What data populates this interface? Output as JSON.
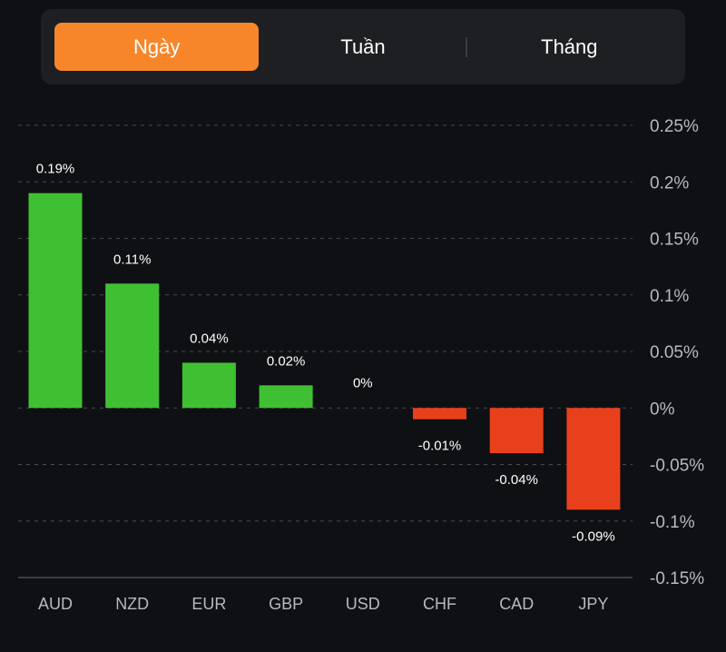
{
  "tabs": [
    {
      "label": "Ngày",
      "active": true
    },
    {
      "label": "Tuần",
      "active": false
    },
    {
      "label": "Tháng",
      "active": false
    }
  ],
  "colors": {
    "accent": "#f7862a",
    "positive": "#3fc033",
    "negative": "#e8401c",
    "background": "#0f1013",
    "panel": "#1e1f23",
    "grid": "#4a4b50",
    "axis_text": "#b8b9be"
  },
  "chart_data": {
    "type": "bar",
    "categories": [
      "AUD",
      "NZD",
      "EUR",
      "GBP",
      "USD",
      "CHF",
      "CAD",
      "JPY"
    ],
    "values": [
      0.19,
      0.11,
      0.04,
      0.02,
      0,
      -0.01,
      -0.04,
      -0.09
    ],
    "data_labels": [
      "0.19%",
      "0.11%",
      "0.04%",
      "0.02%",
      "0%",
      "-0.01%",
      "-0.04%",
      "-0.09%"
    ],
    "y_ticks": [
      0.25,
      0.2,
      0.15,
      0.1,
      0.05,
      0,
      -0.05,
      -0.1,
      -0.15
    ],
    "y_tick_labels": [
      "0.25%",
      "0.2%",
      "0.15%",
      "0.1%",
      "0.05%",
      "0%",
      "-0.05%",
      "-0.1%",
      "-0.15%"
    ],
    "ylim": [
      -0.15,
      0.25
    ],
    "y_axis_position": "right",
    "grid": true,
    "title": "",
    "xlabel": "",
    "ylabel": ""
  }
}
